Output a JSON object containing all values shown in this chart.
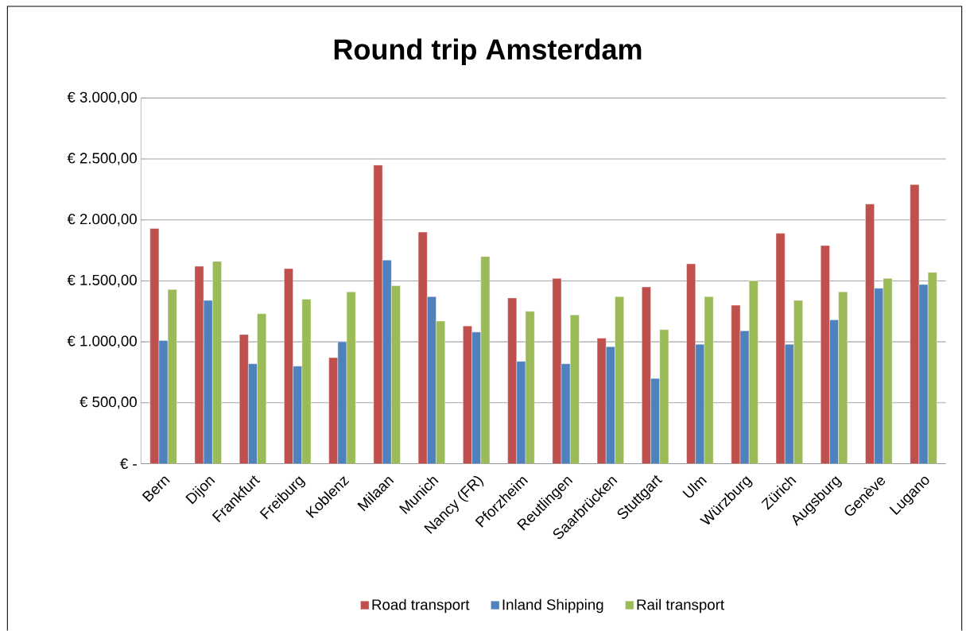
{
  "chart_data": {
    "type": "bar",
    "title": "Round trip Amsterdam",
    "categories": [
      "Bern",
      "Dijon",
      "Frankfurt",
      "Freiburg",
      "Koblenz",
      "Milaan",
      "Munich",
      "Nancy (FR)",
      "Pforzheim",
      "Reutlingen",
      "Saarbrücken",
      "Stuttgart",
      "Ulm",
      "Würzburg",
      "Zürich",
      "Augsburg",
      "Genève",
      "Lugano"
    ],
    "series": [
      {
        "name": "Road transport",
        "color": "#c0504d",
        "values": [
          1930,
          1620,
          1060,
          1600,
          870,
          2450,
          1900,
          1130,
          1360,
          1520,
          1030,
          1450,
          1640,
          1300,
          1890,
          1790,
          2130,
          2290
        ]
      },
      {
        "name": "Inland Shipping",
        "color": "#4f81bd",
        "values": [
          1010,
          1340,
          820,
          800,
          1000,
          1670,
          1370,
          1080,
          840,
          820,
          960,
          700,
          980,
          1090,
          980,
          1180,
          1440,
          1470
        ]
      },
      {
        "name": "Rail transport",
        "color": "#9bbb59",
        "values": [
          1430,
          1660,
          1230,
          1350,
          1410,
          1460,
          1170,
          1700,
          1250,
          1220,
          1370,
          1100,
          1370,
          1500,
          1340,
          1410,
          1520,
          1570
        ]
      }
    ],
    "ylim": [
      0,
      3000
    ],
    "yticks": [
      {
        "value": 0,
        "label": "€ -"
      },
      {
        "value": 500,
        "label": "€ 500,00"
      },
      {
        "value": 1000,
        "label": "€ 1.000,00"
      },
      {
        "value": 1500,
        "label": "€ 1.500,00"
      },
      {
        "value": 2000,
        "label": "€ 2.000,00"
      },
      {
        "value": 2500,
        "label": "€ 2.500,00"
      },
      {
        "value": 3000,
        "label": "€ 3.000,00"
      }
    ],
    "grid": "y",
    "legend": "bottom"
  }
}
